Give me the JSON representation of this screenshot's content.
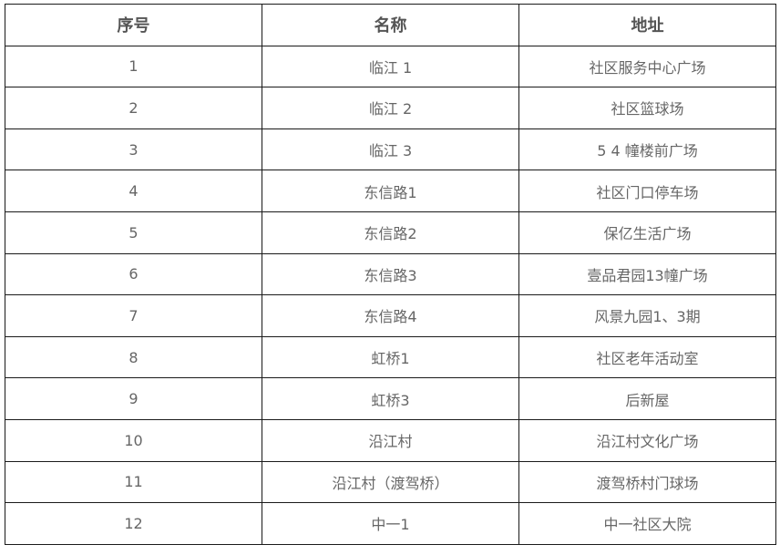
{
  "table": {
    "headers": [
      "序号",
      "名称",
      "地址"
    ],
    "rows": [
      [
        "1",
        "临江 1",
        "社区服务中心广场"
      ],
      [
        "2",
        "临江 2",
        "社区篮球场"
      ],
      [
        "3",
        "临江 3",
        "5 4 幢楼前广场"
      ],
      [
        "4",
        "东信路1",
        "社区门口停车场"
      ],
      [
        "5",
        "东信路2",
        "保亿生活广场"
      ],
      [
        "6",
        "东信路3",
        "壹品君园13幢广场"
      ],
      [
        "7",
        "东信路4",
        "风景九园1、3期"
      ],
      [
        "8",
        "虹桥1",
        "社区老年活动室"
      ],
      [
        "9",
        "虹桥3",
        "后新屋"
      ],
      [
        "10",
        "沿江村",
        "沿江村文化广场"
      ],
      [
        "11",
        "沿江村（渡驾桥）",
        "渡驾桥村门球场"
      ],
      [
        "12",
        "中一1",
        "中一社区大院"
      ]
    ]
  }
}
